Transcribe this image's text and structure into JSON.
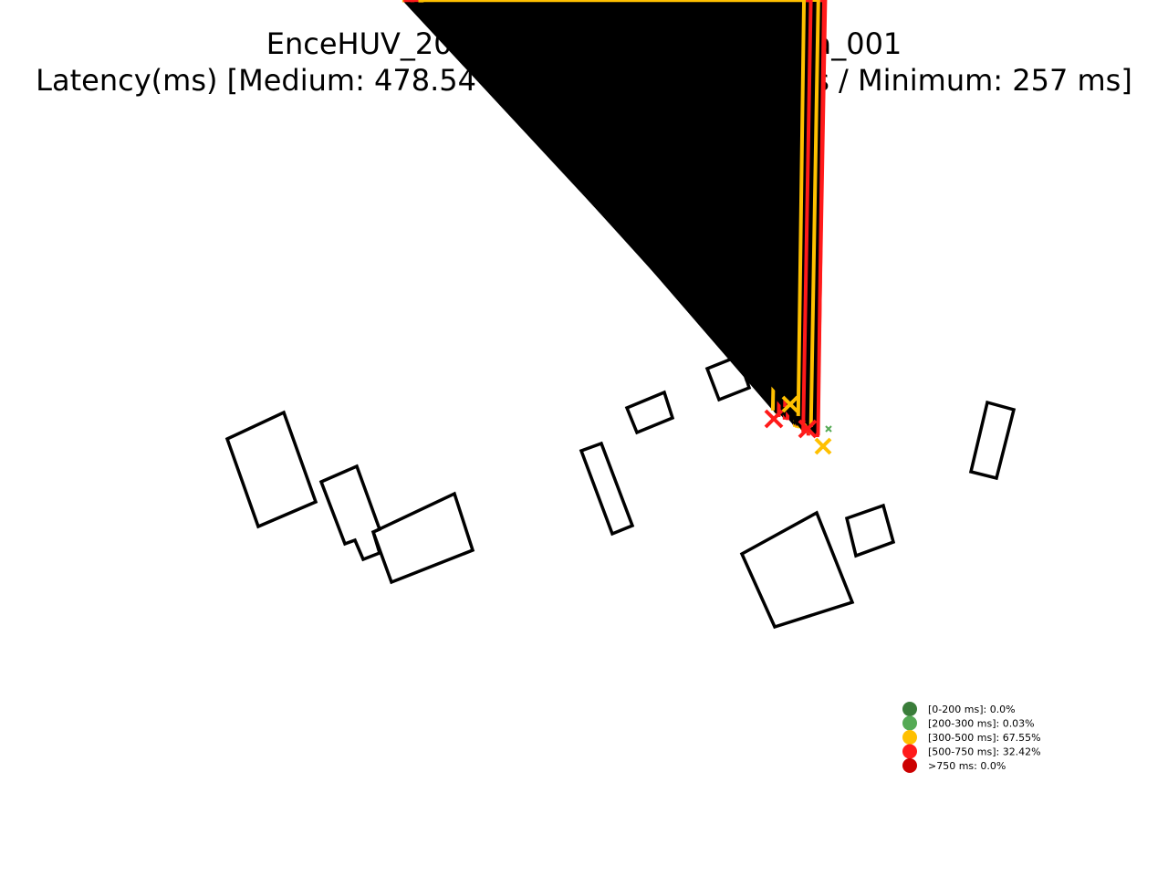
{
  "chart_data": {
    "type": "scatter",
    "title": "EnceHUV_20210209135053_test_Grua_001",
    "subtitle": "Latency(ms) [Medium: 478.54 ms / Maximum: 708 ms / Minimum: 257 ms]",
    "xlabel": "",
    "ylabel": "",
    "grid": false,
    "axes_visible": false,
    "legend_position": "lower-right",
    "legend": [
      {
        "label": "[0-200 ms]: 0.0%",
        "color": "#3a7d3a"
      },
      {
        "label": "[200-300 ms]: 0.03%",
        "color": "#55aa55"
      },
      {
        "label": "[300-500 ms]: 67.55%",
        "color": "#ffc000"
      },
      {
        "label": "[500-750 ms]: 32.42%",
        "color": "#ff1a1a"
      },
      {
        "label": ">750 ms: 0.0%",
        "color": "#cc0000"
      }
    ],
    "series": [
      {
        "label": "[300-500 ms]",
        "color": "#ffc000",
        "marker": "x"
      },
      {
        "label": "[500-750 ms]",
        "color": "#ff1a1a",
        "marker": "x"
      },
      {
        "label": "[200-300 ms]",
        "color": "#55aa55",
        "marker": "x"
      }
    ],
    "building_outline_color": "#000000"
  }
}
